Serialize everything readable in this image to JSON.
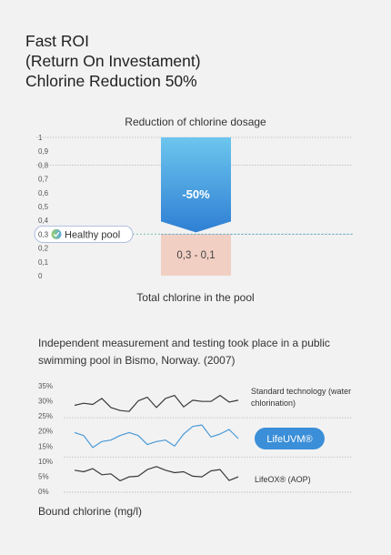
{
  "header": {
    "title_lines": [
      "Fast ROI",
      "(Return On Investament)",
      "Chlorine Reduction 50%"
    ]
  },
  "chart_data": [
    {
      "type": "bar",
      "title": "Reduction of chlorine dosage",
      "xlabel": "Total chlorine in the pool",
      "ylim": [
        0,
        1
      ],
      "y_ticks": [
        "0",
        "0,1",
        "0,2",
        "0,3",
        "0,4",
        "0,5",
        "0,6",
        "0,7",
        "0,8",
        "0,9",
        "1"
      ],
      "grid": [
        "1",
        "0,8"
      ],
      "bars": [
        {
          "from": 0.3,
          "to": 1.0,
          "label": "-50%",
          "color": "#3a8fd9",
          "style": "arrow-down"
        },
        {
          "from": 0.0,
          "to": 0.3,
          "label": "0,3 - 0,1",
          "color": "#f2cfc3"
        }
      ],
      "reference_line": {
        "value": 0.3,
        "tick_label": "0,3",
        "label": "Healthy pool",
        "color": "#7cc4a9",
        "icon": "check-circle-icon"
      }
    },
    {
      "type": "line",
      "ylabel": "Bound chlorine (mg/l)",
      "ylim": [
        0,
        35
      ],
      "y_ticks": [
        "0%",
        "5%",
        "10%",
        "15%",
        "20%",
        "25%",
        "30%",
        "35%"
      ],
      "x": [
        1,
        2,
        3,
        4,
        5,
        6,
        7,
        8,
        9,
        10,
        11,
        12,
        13,
        14,
        15,
        16,
        17,
        18,
        19
      ],
      "series": [
        {
          "name": "Standard technology (water chlorination)",
          "color": "#3a3a3a",
          "label_style": "text",
          "values": [
            28.5,
            29.2,
            28.8,
            30.8,
            27.8,
            26.8,
            26.5,
            30.0,
            31.2,
            27.8,
            30.8,
            31.8,
            28.0,
            30.2,
            29.8,
            29.8,
            31.8,
            29.6,
            30.2
          ]
        },
        {
          "name": "LifeUVM®",
          "color": "#4a9ad6",
          "label_style": "pill",
          "values": [
            19.5,
            18.5,
            14.5,
            16.5,
            17.0,
            18.5,
            19.5,
            18.5,
            15.5,
            16.5,
            17.0,
            15.0,
            19.0,
            21.5,
            22.0,
            18.0,
            19.0,
            20.5,
            17.5
          ]
        },
        {
          "name": "LifeOX® (AOP)",
          "color": "#3a3a3a",
          "label_style": "text",
          "values": [
            7.0,
            6.5,
            7.5,
            5.5,
            5.8,
            3.5,
            4.8,
            5.0,
            7.2,
            8.2,
            7.0,
            6.2,
            6.5,
            5.0,
            4.8,
            6.8,
            7.2,
            3.6,
            4.8
          ]
        }
      ]
    }
  ],
  "footer": {
    "note": "Independent measurement and testing took place in a public swimming pool in Bismo, Norway. (2007)"
  }
}
